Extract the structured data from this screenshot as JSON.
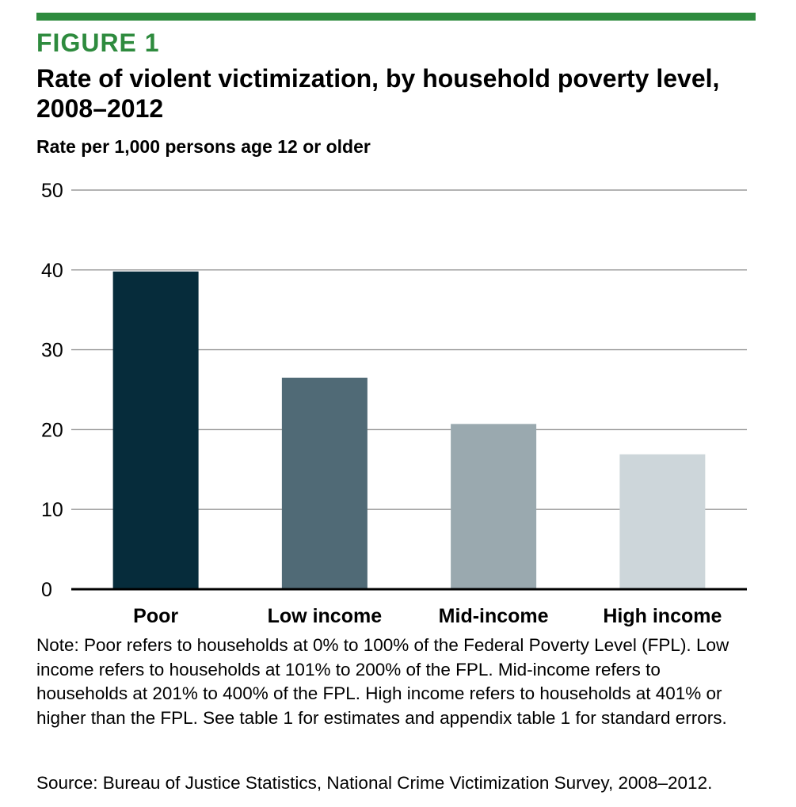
{
  "figure": {
    "label": "FIGURE 1",
    "note": "Note: Poor refers to households at 0% to 100% of the Federal Poverty Level (FPL). Low income refers to households at 101% to 200% of the FPL. Mid-income refers to households at 201% to 400% of the FPL. High income refers to households at 401% or higher than the FPL. See table 1 for estimates and appendix table 1 for standard errors.",
    "source": "Source: Bureau of Justice Statistics, National Crime Victimization Survey, 2008–2012."
  },
  "colors": {
    "accent": "#2e8b3e",
    "gridline": "#9a9a9a",
    "axis": "#000000",
    "bars": [
      "#062c3b",
      "#506a76",
      "#9aa9af",
      "#cdd6da"
    ]
  },
  "chart_data": {
    "type": "bar",
    "title": "Rate of violent victimization, by household poverty level, 2008–2012",
    "subtitle": "Rate per 1,000 persons age 12 or older",
    "xlabel": "",
    "ylabel": "",
    "categories": [
      "Poor",
      "Low income",
      "Mid-income",
      "High income"
    ],
    "values": [
      39.8,
      26.5,
      20.7,
      16.9
    ],
    "ylim": [
      0,
      50
    ],
    "yticks": [
      "0",
      "10",
      "20",
      "30",
      "40",
      "50"
    ],
    "grid": true,
    "legend": "none"
  }
}
